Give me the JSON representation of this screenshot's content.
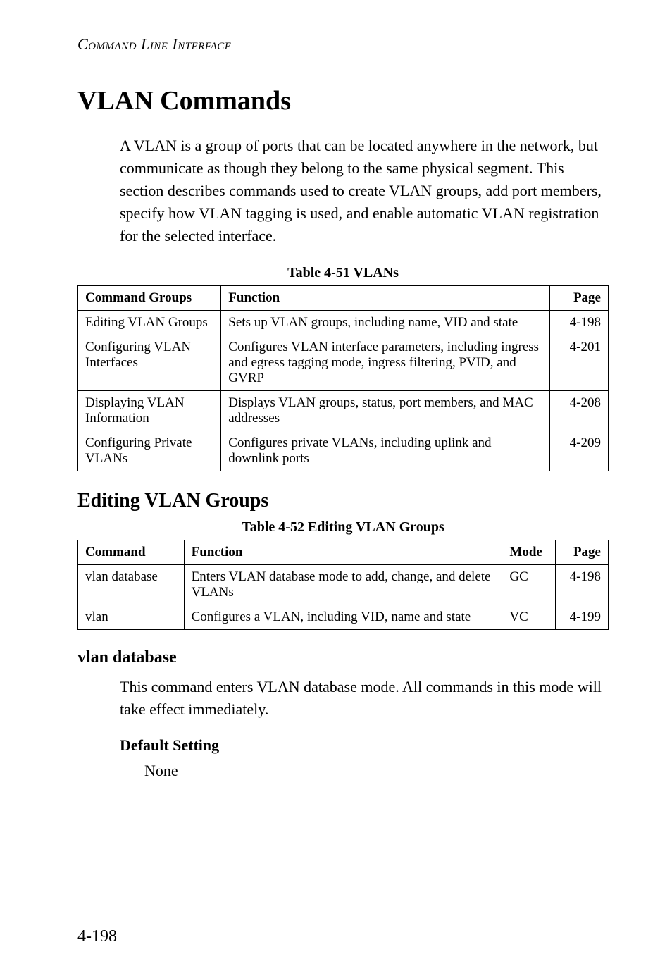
{
  "running_head": "Command Line Interface",
  "section_title": "VLAN Commands",
  "intro_paragraph": "A VLAN is a group of ports that can be located anywhere in the network, but communicate as though they belong to the same physical segment. This section describes commands used to create VLAN groups, add port members, specify how VLAN tagging is used, and enable automatic VLAN registration for the selected interface.",
  "table1": {
    "caption": "Table 4-51  VLANs",
    "headers": {
      "c1": "Command Groups",
      "c2": "Function",
      "c3": "Page"
    },
    "rows": [
      {
        "c1": "Editing VLAN Groups",
        "c2": "Sets up VLAN groups, including name, VID and state",
        "c3": "4-198"
      },
      {
        "c1": "Configuring VLAN Interfaces",
        "c2": "Configures VLAN interface parameters, including ingress and egress tagging mode, ingress filtering, PVID, and GVRP",
        "c3": "4-201"
      },
      {
        "c1": "Displaying VLAN Information",
        "c2": "Displays VLAN groups, status, port members, and MAC addresses",
        "c3": "4-208"
      },
      {
        "c1": "Configuring Private VLANs",
        "c2": "Configures private VLANs, including uplink and downlink ports",
        "c3": "4-209"
      }
    ]
  },
  "subsection_title": "Editing VLAN Groups",
  "table2": {
    "caption": "Table 4-52  Editing VLAN Groups",
    "headers": {
      "c1": "Command",
      "c2": "Function",
      "c3": "Mode",
      "c4": "Page"
    },
    "rows": [
      {
        "c1": "vlan database",
        "c2": "Enters VLAN database mode to add, change, and delete VLANs",
        "c3": "GC",
        "c4": "4-198"
      },
      {
        "c1": "vlan",
        "c2": "Configures a VLAN, including VID, name and state",
        "c3": "VC",
        "c4": "4-199"
      }
    ]
  },
  "command": {
    "name": "vlan database",
    "description": "This command enters VLAN database mode. All commands in this mode will take effect immediately.",
    "default_label": "Default Setting",
    "default_value": "None"
  },
  "page_number": "4-198"
}
